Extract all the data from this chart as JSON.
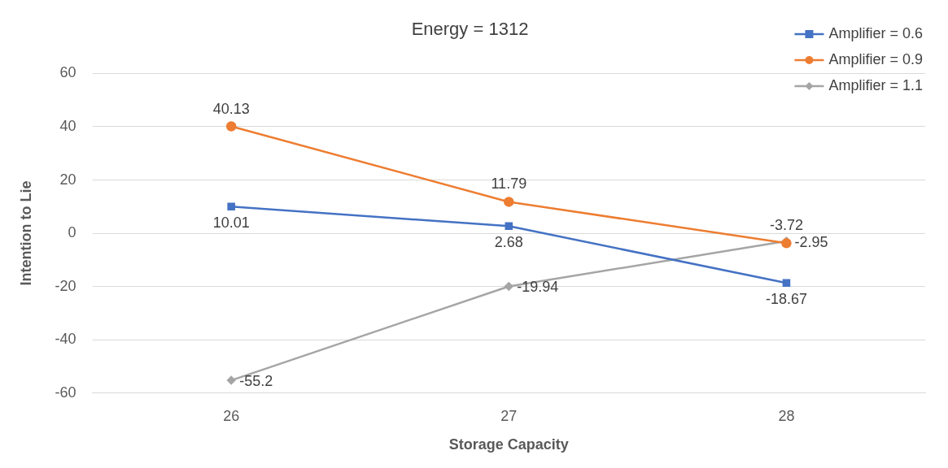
{
  "chart_data": {
    "type": "line",
    "title": "Energy = 1312",
    "xlabel": "Storage Capacity",
    "ylabel": "Intention to Lie",
    "categories": [
      "26",
      "27",
      "28"
    ],
    "series": [
      {
        "name": "Amplifier = 0.6",
        "color": "#4472c4",
        "marker": "square",
        "values": [
          10.01,
          2.68,
          -18.67
        ]
      },
      {
        "name": "Amplifier = 0.9",
        "color": "#ed7d31",
        "marker": "circle",
        "values": [
          40.13,
          11.79,
          -3.72
        ]
      },
      {
        "name": "Amplifier = 1.1",
        "color": "#a5a5a5",
        "marker": "diamond",
        "values": [
          -55.2,
          -19.94,
          -2.95
        ]
      }
    ],
    "ylim": [
      -60,
      60
    ],
    "yticks": [
      -60,
      -40,
      -20,
      0,
      20,
      40,
      60
    ],
    "grid": "y",
    "legend": "top right",
    "data_labels": true
  }
}
